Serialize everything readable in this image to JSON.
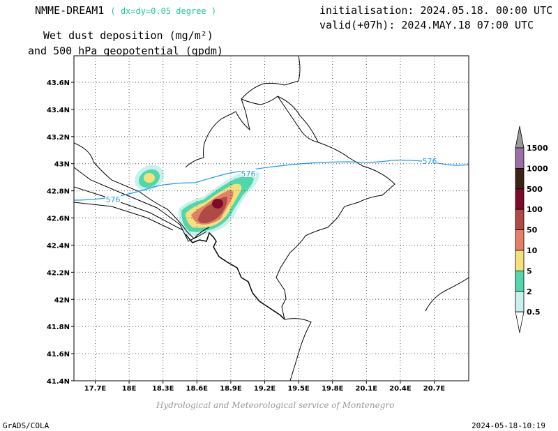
{
  "header": {
    "model": "NMME-DREAM1",
    "grid_note": "( dx=dy=0.05 degree )",
    "initialisation": "initialisation: 2024.05.18. 00:00 UTC",
    "valid": "valid(+07h): 2024.MAY.18 07:00 UTC",
    "title_line1": "Wet dust deposition (mg/m²)",
    "title_line2": "and 500 hPa geopotential (gpdm)"
  },
  "map": {
    "lat_labels": [
      "43.6N",
      "43.4N",
      "43.2N",
      "43N",
      "42.8N",
      "42.6N",
      "42.4N",
      "42.2N",
      "42N",
      "41.8N",
      "41.6N",
      "41.4N"
    ],
    "lon_labels": [
      "17.7E",
      "18E",
      "18.3E",
      "18.6E",
      "18.9E",
      "19.2E",
      "19.5E",
      "19.8E",
      "20.1E",
      "20.4E",
      "20.7E"
    ],
    "contour_label": "576",
    "contour_color": "#1e9be6",
    "grid": true
  },
  "legend": {
    "labels": [
      "1500",
      "1000",
      "500",
      "100",
      "50",
      "10",
      "5",
      "2",
      "0.5"
    ],
    "colors": [
      "#9b6fa6",
      "#3d2316",
      "#7c0a2a",
      "#b04a44",
      "#e58068",
      "#f6e07c",
      "#50d8ac",
      "#c8f0ec"
    ],
    "top_color": "#9a9a9a"
  },
  "credit": "Hydrological and Meteorological service of Montenegro",
  "footer": {
    "left": "GrADS/COLA",
    "right": "2024-05-18-10:19"
  }
}
